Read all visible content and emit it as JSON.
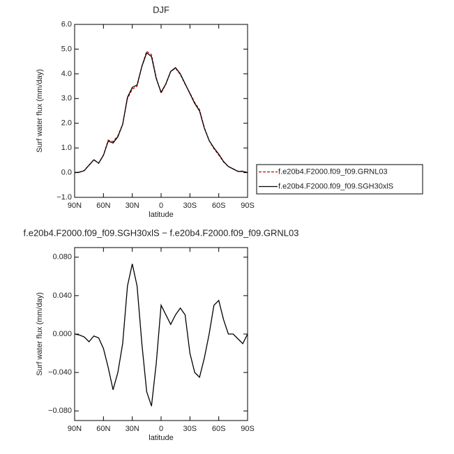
{
  "chart_data": [
    {
      "type": "line",
      "title": "DJF",
      "x_label": "latitude",
      "y_label": "Surf water flux (mm/day)",
      "x": [
        90,
        85,
        80,
        75,
        70,
        65,
        60,
        55,
        50,
        45,
        40,
        35,
        30,
        25,
        20,
        15,
        10,
        5,
        0,
        -5,
        -10,
        -15,
        -20,
        -25,
        -30,
        -35,
        -40,
        -45,
        -50,
        -55,
        -60,
        -65,
        -70,
        -75,
        -80,
        -85,
        -90
      ],
      "series": [
        {
          "name": "f.e20b4.F2000.f09_f09.GRNL03",
          "color": "#cc0000",
          "dashed": true,
          "values": [
            0.0,
            0.021,
            0.083,
            0.308,
            0.522,
            0.384,
            0.715,
            1.315,
            1.258,
            1.49,
            1.96,
            3.0,
            3.377,
            3.5,
            4.31,
            4.91,
            4.775,
            3.83,
            3.22,
            3.58,
            4.09,
            4.23,
            3.973,
            3.58,
            3.22,
            2.84,
            2.545,
            1.825,
            1.3,
            0.97,
            0.715,
            0.435,
            0.25,
            0.15,
            0.055,
            0.06,
            0.0
          ]
        },
        {
          "name": "f.e20b4.F2000.f09_f09.SGH30xlS",
          "color": "#000000",
          "dashed": false,
          "values": [
            0.0,
            0.02,
            0.08,
            0.3,
            0.52,
            0.38,
            0.7,
            1.28,
            1.2,
            1.45,
            1.95,
            3.05,
            3.45,
            3.55,
            4.3,
            4.85,
            4.7,
            3.8,
            3.25,
            3.6,
            4.1,
            4.25,
            4.0,
            3.6,
            3.2,
            2.8,
            2.5,
            1.8,
            1.3,
            1.0,
            0.75,
            0.45,
            0.25,
            0.15,
            0.05,
            0.05,
            0.0
          ]
        }
      ],
      "xlim": [
        90,
        -90
      ],
      "xticks": [
        {
          "value": 90,
          "label": "90N"
        },
        {
          "value": 60,
          "label": "60N"
        },
        {
          "value": 30,
          "label": "30N"
        },
        0,
        {
          "value": -30,
          "label": "30S"
        },
        {
          "value": -60,
          "label": "60S"
        },
        {
          "value": -90,
          "label": "90S"
        }
      ],
      "ylim": [
        -1.0,
        6.0
      ],
      "yticks": [
        {
          "value": -1,
          "label": "−1.0"
        },
        {
          "value": 0,
          "label": "0.0"
        },
        {
          "value": 1,
          "label": "1.0"
        },
        {
          "value": 2,
          "label": "2.0"
        },
        {
          "value": 3,
          "label": "3.0"
        },
        {
          "value": 4,
          "label": "4.0"
        },
        {
          "value": 5,
          "label": "5.0"
        },
        {
          "value": 6,
          "label": "6.0"
        }
      ],
      "legend": "right"
    },
    {
      "type": "line",
      "title": "f.e20b4.F2000.f09_f09.SGH30xlS − f.e20b4.F2000.f09_f09.GRNL03",
      "x_label": "latitude",
      "y_label": "Surf water flux (mm/day)",
      "x": [
        90,
        85,
        80,
        75,
        70,
        65,
        60,
        55,
        50,
        45,
        40,
        35,
        30,
        25,
        20,
        15,
        10,
        5,
        0,
        -5,
        -10,
        -15,
        -20,
        -25,
        -30,
        -35,
        -40,
        -45,
        -50,
        -55,
        -60,
        -65,
        -70,
        -75,
        -80,
        -85,
        -90
      ],
      "series": [
        {
          "color": "#000000",
          "dashed": false,
          "values": [
            0.0,
            -0.001,
            -0.003,
            -0.008,
            -0.002,
            -0.004,
            -0.015,
            -0.035,
            -0.058,
            -0.04,
            -0.01,
            0.05,
            0.073,
            0.05,
            -0.01,
            -0.06,
            -0.075,
            -0.03,
            0.03,
            0.02,
            0.01,
            0.02,
            0.027,
            0.02,
            -0.02,
            -0.04,
            -0.045,
            -0.025,
            0.0,
            0.03,
            0.035,
            0.015,
            0.0,
            0.0,
            -0.005,
            -0.01,
            0.0
          ]
        }
      ],
      "xlim": [
        90,
        -90
      ],
      "xticks": [
        {
          "value": 90,
          "label": "90N"
        },
        {
          "value": 60,
          "label": "60N"
        },
        {
          "value": 30,
          "label": "30N"
        },
        0,
        {
          "value": -30,
          "label": "30S"
        },
        {
          "value": -60,
          "label": "60S"
        },
        {
          "value": -90,
          "label": "90S"
        }
      ],
      "ylim": [
        -0.09,
        0.09
      ],
      "yticks": [
        {
          "value": -0.08,
          "label": "−0.080"
        },
        {
          "value": -0.04,
          "label": "−0.040"
        },
        {
          "value": 0,
          "label": "0.000"
        },
        {
          "value": 0.04,
          "label": "0.040"
        },
        {
          "value": 0.08,
          "label": "0.080"
        }
      ]
    }
  ]
}
